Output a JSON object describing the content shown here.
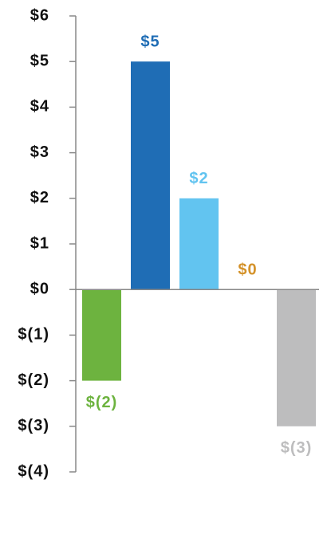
{
  "chart_data": {
    "type": "bar",
    "categories": [
      null,
      null,
      null,
      null,
      null
    ],
    "values": [
      -2,
      5,
      2,
      0,
      -3
    ],
    "value_labels": [
      "$(2)",
      "$5",
      "$2",
      "$0",
      "$(3)"
    ],
    "colors": [
      "#6db33f",
      "#1f6db5",
      "#62c4f0",
      "#d4922a",
      "#bdbdbe"
    ],
    "ylim": [
      -4,
      6
    ],
    "yticks": [
      {
        "value": -4,
        "label": "$(4)"
      },
      {
        "value": -3,
        "label": "$(3)"
      },
      {
        "value": -2,
        "label": "$(2)"
      },
      {
        "value": -1,
        "label": "$(1)"
      },
      {
        "value": 0,
        "label": "$0"
      },
      {
        "value": 1,
        "label": "$1"
      },
      {
        "value": 2,
        "label": "$2"
      },
      {
        "value": 3,
        "label": "$3"
      },
      {
        "value": 4,
        "label": "$4"
      },
      {
        "value": 5,
        "label": "$5"
      },
      {
        "value": 6,
        "label": "$6"
      }
    ],
    "grid": false
  }
}
